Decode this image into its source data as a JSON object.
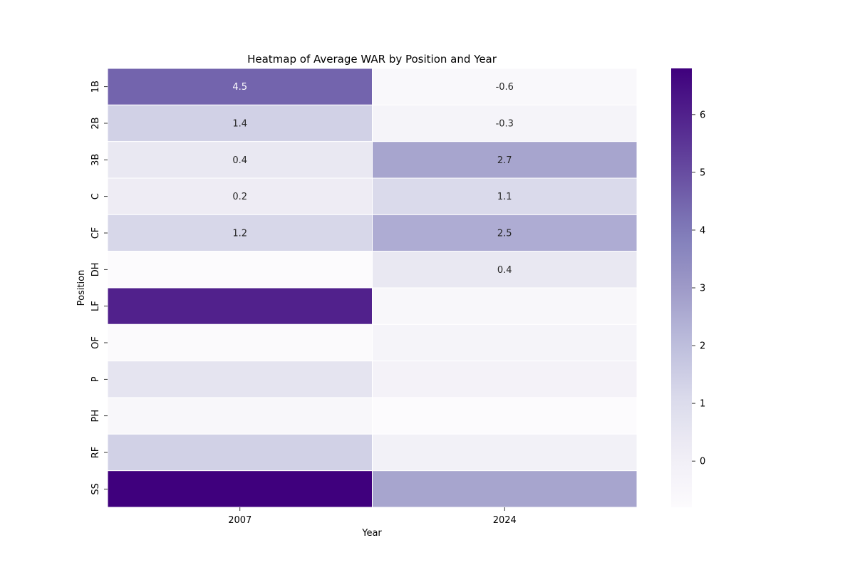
{
  "chart_data": {
    "type": "heatmap",
    "title": "Heatmap of Average WAR by Position and Year",
    "xlabel": "Year",
    "ylabel": "Position",
    "x_categories": [
      "2007",
      "2024"
    ],
    "y_categories": [
      "1B",
      "2B",
      "3B",
      "C",
      "CF",
      "DH",
      "LF",
      "OF",
      "P",
      "PH",
      "RF",
      "SS"
    ],
    "values": [
      [
        4.5,
        -0.6
      ],
      [
        1.4,
        -0.3
      ],
      [
        0.4,
        2.7
      ],
      [
        0.2,
        1.1
      ],
      [
        1.2,
        2.5
      ],
      [
        -0.8,
        0.4
      ],
      [
        6.0,
        -0.5
      ],
      [
        -0.7,
        -0.3
      ],
      [
        0.6,
        -0.2
      ],
      [
        -0.5,
        -0.8
      ],
      [
        1.4,
        -0.1
      ],
      [
        6.8,
        2.7
      ]
    ],
    "cell_labels": [
      [
        "4.5",
        "-0.6"
      ],
      [
        "1.4",
        "-0.3"
      ],
      [
        "0.4",
        "2.7"
      ],
      [
        "0.2",
        "1.1"
      ],
      [
        "1.2",
        "2.5"
      ],
      [
        "",
        "0.4"
      ],
      [
        "",
        ""
      ],
      [
        "",
        ""
      ],
      [
        "",
        ""
      ],
      [
        "",
        ""
      ],
      [
        "",
        ""
      ],
      [
        "",
        ""
      ]
    ],
    "colorbar": {
      "colormap": "Purples",
      "vmin": -0.8,
      "vmax": 6.8,
      "ticks": [
        "0",
        "1",
        "2",
        "3",
        "4",
        "5",
        "6"
      ]
    },
    "grid": false,
    "legend": "colorbar-right"
  }
}
